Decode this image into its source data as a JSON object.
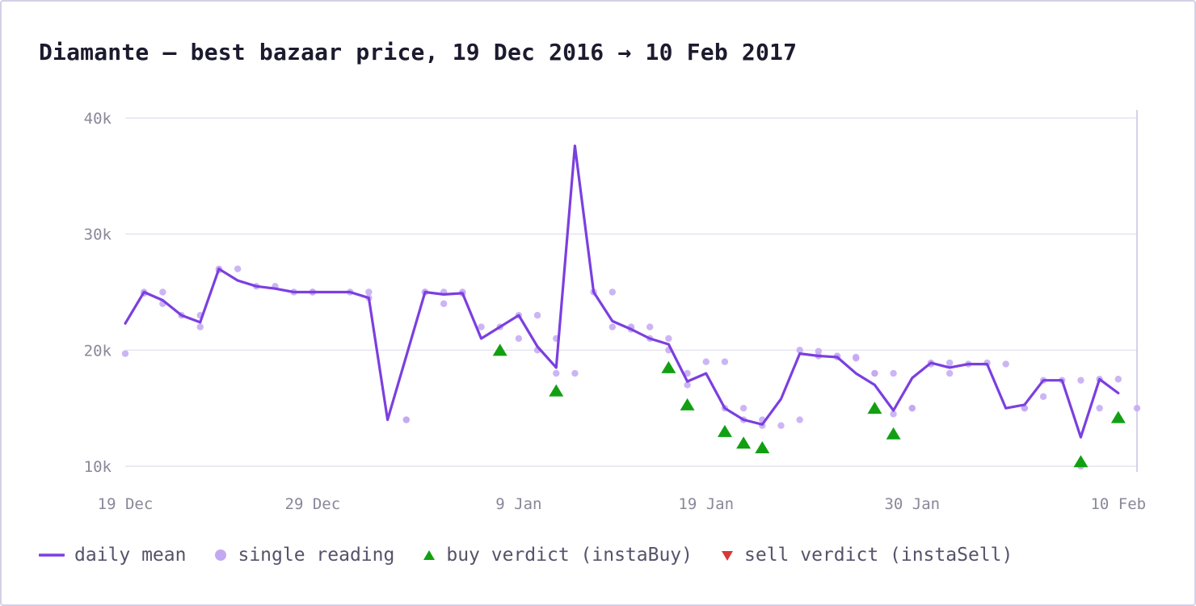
{
  "colors": {
    "mean_line": "#7b3fe0",
    "reading_dot": "#c3a8f2",
    "buy_marker": "#12a012",
    "sell_marker": "#d93838",
    "grid": "#e6e4ef",
    "axis_text": "#8a8799"
  },
  "chart_data": {
    "type": "line",
    "title": "Diamante – best bazaar price, 19 Dec 2016 → 10 Feb 2017",
    "xlabel": "",
    "ylabel": "",
    "x_axis": {
      "kind": "date",
      "range": [
        "2016-12-19",
        "2017-02-11"
      ],
      "ticks": [
        {
          "date": "2016-12-19",
          "label": "19 Dec"
        },
        {
          "date": "2016-12-29",
          "label": "29 Dec"
        },
        {
          "date": "2017-01-09",
          "label": "9 Jan"
        },
        {
          "date": "2017-01-19",
          "label": "19 Jan"
        },
        {
          "date": "2017-01-30",
          "label": "30 Jan"
        },
        {
          "date": "2017-02-10",
          "label": "10 Feb"
        }
      ]
    },
    "y_axis": {
      "range": [
        10000,
        40000
      ],
      "ticks": [
        {
          "value": 10000,
          "label": "10k"
        },
        {
          "value": 20000,
          "label": "20k"
        },
        {
          "value": 30000,
          "label": "30k"
        },
        {
          "value": 40000,
          "label": "40k"
        }
      ]
    },
    "grid": true,
    "legend_position": "bottom",
    "series": [
      {
        "name": "daily mean",
        "type": "line",
        "points": [
          [
            "2016-12-19",
            22300
          ],
          [
            "2016-12-20",
            25000
          ],
          [
            "2016-12-21",
            24300
          ],
          [
            "2016-12-22",
            23000
          ],
          [
            "2016-12-23",
            22400
          ],
          [
            "2016-12-24",
            27000
          ],
          [
            "2016-12-25",
            26000
          ],
          [
            "2016-12-26",
            25500
          ],
          [
            "2016-12-27",
            25300
          ],
          [
            "2016-12-28",
            25000
          ],
          [
            "2016-12-29",
            25000
          ],
          [
            "2016-12-31",
            25000
          ],
          [
            "2017-01-01",
            24500
          ],
          [
            "2017-01-02",
            14000
          ],
          [
            "2017-01-04",
            25000
          ],
          [
            "2017-01-05",
            24800
          ],
          [
            "2017-01-06",
            24900
          ],
          [
            "2017-01-07",
            21000
          ],
          [
            "2017-01-09",
            23000
          ],
          [
            "2017-01-10",
            20300
          ],
          [
            "2017-01-11",
            18500
          ],
          [
            "2017-01-12",
            37600
          ],
          [
            "2017-01-13",
            25000
          ],
          [
            "2017-01-14",
            22500
          ],
          [
            "2017-01-15",
            21800
          ],
          [
            "2017-01-16",
            21000
          ],
          [
            "2017-01-17",
            20500
          ],
          [
            "2017-01-18",
            17300
          ],
          [
            "2017-01-19",
            18000
          ],
          [
            "2017-01-20",
            15000
          ],
          [
            "2017-01-21",
            14000
          ],
          [
            "2017-01-22",
            13600
          ],
          [
            "2017-01-23",
            15800
          ],
          [
            "2017-01-24",
            19700
          ],
          [
            "2017-01-25",
            19500
          ],
          [
            "2017-01-26",
            19400
          ],
          [
            "2017-01-27",
            18000
          ],
          [
            "2017-01-28",
            17000
          ],
          [
            "2017-01-29",
            14800
          ],
          [
            "2017-01-30",
            17600
          ],
          [
            "2017-01-31",
            18900
          ],
          [
            "2017-02-01",
            18500
          ],
          [
            "2017-02-02",
            18800
          ],
          [
            "2017-02-03",
            18800
          ],
          [
            "2017-02-04",
            15000
          ],
          [
            "2017-02-05",
            15300
          ],
          [
            "2017-02-06",
            17400
          ],
          [
            "2017-02-07",
            17400
          ],
          [
            "2017-02-08",
            12500
          ],
          [
            "2017-02-09",
            17500
          ],
          [
            "2017-02-10",
            16300
          ]
        ]
      },
      {
        "name": "single reading",
        "type": "scatter",
        "points": [
          [
            "2016-12-19",
            19700
          ],
          [
            "2016-12-20",
            25000
          ],
          [
            "2016-12-20",
            24900
          ],
          [
            "2016-12-21",
            25000
          ],
          [
            "2016-12-21",
            24000
          ],
          [
            "2016-12-22",
            23000
          ],
          [
            "2016-12-23",
            23000
          ],
          [
            "2016-12-23",
            22000
          ],
          [
            "2016-12-24",
            27000
          ],
          [
            "2016-12-24",
            26900
          ],
          [
            "2016-12-25",
            27000
          ],
          [
            "2016-12-26",
            25500
          ],
          [
            "2016-12-27",
            25500
          ],
          [
            "2016-12-28",
            25000
          ],
          [
            "2016-12-29",
            25000
          ],
          [
            "2016-12-29",
            25000
          ],
          [
            "2016-12-31",
            25000
          ],
          [
            "2017-01-01",
            25000
          ],
          [
            "2017-01-01",
            24500
          ],
          [
            "2017-01-03",
            14000
          ],
          [
            "2017-01-03",
            14000
          ],
          [
            "2017-01-04",
            25000
          ],
          [
            "2017-01-04",
            25000
          ],
          [
            "2017-01-05",
            25000
          ],
          [
            "2017-01-05",
            24000
          ],
          [
            "2017-01-06",
            25000
          ],
          [
            "2017-01-06",
            24900
          ],
          [
            "2017-01-07",
            22000
          ],
          [
            "2017-01-08",
            22000
          ],
          [
            "2017-01-09",
            21000
          ],
          [
            "2017-01-09",
            23000
          ],
          [
            "2017-01-10",
            23000
          ],
          [
            "2017-01-10",
            20000
          ],
          [
            "2017-01-11",
            21000
          ],
          [
            "2017-01-11",
            18000
          ],
          [
            "2017-01-12",
            18000
          ],
          [
            "2017-01-13",
            25000
          ],
          [
            "2017-01-14",
            25000
          ],
          [
            "2017-01-14",
            22000
          ],
          [
            "2017-01-15",
            22000
          ],
          [
            "2017-01-15",
            21800
          ],
          [
            "2017-01-16",
            22000
          ],
          [
            "2017-01-16",
            21000
          ],
          [
            "2017-01-17",
            21000
          ],
          [
            "2017-01-17",
            20000
          ],
          [
            "2017-01-18",
            18000
          ],
          [
            "2017-01-18",
            17000
          ],
          [
            "2017-01-19",
            19000
          ],
          [
            "2017-01-20",
            15000
          ],
          [
            "2017-01-20",
            19000
          ],
          [
            "2017-01-21",
            15000
          ],
          [
            "2017-01-21",
            14000
          ],
          [
            "2017-01-22",
            14000
          ],
          [
            "2017-01-22",
            13500
          ],
          [
            "2017-01-23",
            13500
          ],
          [
            "2017-01-24",
            14000
          ],
          [
            "2017-01-24",
            20000
          ],
          [
            "2017-01-25",
            19900
          ],
          [
            "2017-01-25",
            19500
          ],
          [
            "2017-01-26",
            19500
          ],
          [
            "2017-01-26",
            19400
          ],
          [
            "2017-01-27",
            19400
          ],
          [
            "2017-01-27",
            19300
          ],
          [
            "2017-01-28",
            18000
          ],
          [
            "2017-01-28",
            18000
          ],
          [
            "2017-01-29",
            18000
          ],
          [
            "2017-01-29",
            14500
          ],
          [
            "2017-01-30",
            15000
          ],
          [
            "2017-01-30",
            15000
          ],
          [
            "2017-01-31",
            18900
          ],
          [
            "2017-01-31",
            18800
          ],
          [
            "2017-02-01",
            18900
          ],
          [
            "2017-02-01",
            18000
          ],
          [
            "2017-02-02",
            18800
          ],
          [
            "2017-02-03",
            18900
          ],
          [
            "2017-02-04",
            18800
          ],
          [
            "2017-02-05",
            15000
          ],
          [
            "2017-02-05",
            15000
          ],
          [
            "2017-02-06",
            16000
          ],
          [
            "2017-02-06",
            17400
          ],
          [
            "2017-02-07",
            17400
          ],
          [
            "2017-02-08",
            17400
          ],
          [
            "2017-02-08",
            10000
          ],
          [
            "2017-02-09",
            15000
          ],
          [
            "2017-02-09",
            17500
          ],
          [
            "2017-02-10",
            17500
          ],
          [
            "2017-02-11",
            15000
          ]
        ]
      },
      {
        "name": "buy verdict (instaBuy)",
        "type": "marker-up",
        "points": [
          [
            "2017-01-08",
            20000
          ],
          [
            "2017-01-11",
            16500
          ],
          [
            "2017-01-17",
            18500
          ],
          [
            "2017-01-18",
            15300
          ],
          [
            "2017-01-20",
            13000
          ],
          [
            "2017-01-21",
            12000
          ],
          [
            "2017-01-22",
            11600
          ],
          [
            "2017-01-28",
            15000
          ],
          [
            "2017-01-29",
            12800
          ],
          [
            "2017-02-08",
            10400
          ],
          [
            "2017-02-10",
            14200
          ]
        ]
      },
      {
        "name": "sell verdict (instaSell)",
        "type": "marker-down",
        "points": []
      }
    ]
  }
}
